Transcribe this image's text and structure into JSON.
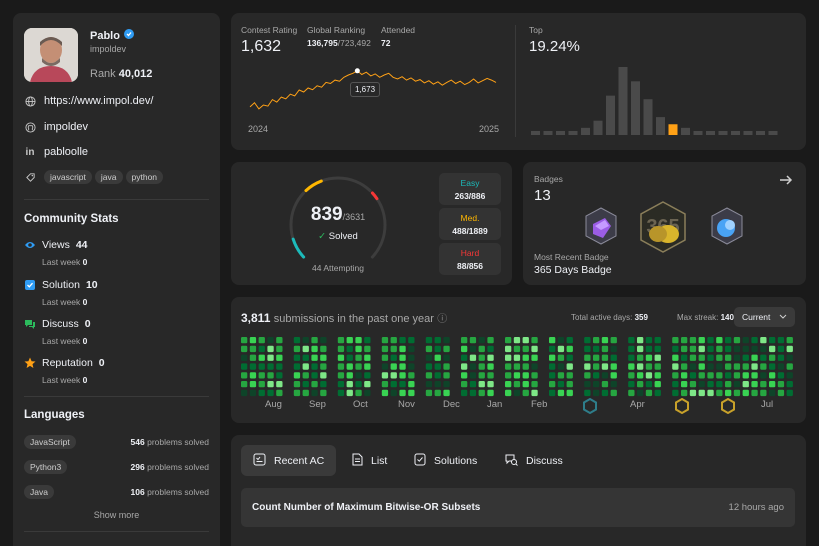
{
  "profile": {
    "name": "Pablo",
    "username": "impoldev",
    "rank_label": "Rank",
    "rank_value": "40,012",
    "website": "https://www.impol.dev/",
    "github": "impoldev",
    "linkedin": "pabloolle",
    "tags": [
      "javascript",
      "java",
      "python"
    ]
  },
  "community": {
    "title": "Community Stats",
    "items": [
      {
        "label": "Views",
        "value": "44",
        "sub": "Last week",
        "sub_value": "0",
        "icon": "eye-icon",
        "color": "#2f9cf4"
      },
      {
        "label": "Solution",
        "value": "10",
        "sub": "Last week",
        "sub_value": "0",
        "icon": "check-square-icon",
        "color": "#2f9cf4"
      },
      {
        "label": "Discuss",
        "value": "0",
        "sub": "Last week",
        "sub_value": "0",
        "icon": "chat-icon",
        "color": "#2cbb5d"
      },
      {
        "label": "Reputation",
        "value": "0",
        "sub": "Last week",
        "sub_value": "0",
        "icon": "star-icon",
        "color": "#ffa116"
      }
    ]
  },
  "languages": {
    "title": "Languages",
    "items": [
      {
        "name": "JavaScript",
        "count": "546",
        "unit": "problems solved"
      },
      {
        "name": "Python3",
        "count": "296",
        "unit": "problems solved"
      },
      {
        "name": "Java",
        "count": "106",
        "unit": "problems solved"
      }
    ],
    "show_more": "Show more"
  },
  "contest": {
    "rating_label": "Contest Rating",
    "rating": "1,632",
    "global_label": "Global Ranking",
    "global_rank": "136,795",
    "global_total": "/723,492",
    "attended_label": "Attended",
    "attended": "72",
    "tooltip": "1,673",
    "year_start": "2024",
    "year_end": "2025",
    "top_label": "Top",
    "top_value": "19.24%"
  },
  "chart_data": [
    {
      "type": "line",
      "title": "Contest Rating",
      "x_labels": [
        "2024",
        "2025"
      ],
      "values": [
        1545,
        1560,
        1538,
        1552,
        1548,
        1571,
        1562,
        1580,
        1574,
        1590,
        1584,
        1605,
        1598,
        1612,
        1606,
        1620,
        1615,
        1632,
        1628,
        1640,
        1636,
        1650,
        1658,
        1664,
        1673,
        1660,
        1668,
        1655,
        1662,
        1650,
        1658,
        1664,
        1650,
        1644,
        1652,
        1640,
        1648,
        1636,
        1642,
        1630,
        1638,
        1626,
        1634,
        1622,
        1632,
        1640,
        1628,
        1636,
        1624,
        1632,
        1644,
        1630,
        1638,
        1646,
        1640,
        1632
      ],
      "highlight": {
        "value": 1673
      }
    },
    {
      "type": "bar",
      "title": "Top",
      "values": [
        1,
        1,
        1,
        1,
        2,
        4,
        11,
        19,
        15,
        10,
        5,
        3,
        2,
        1,
        1,
        1,
        1,
        1,
        1,
        1
      ],
      "highlight_index": 11,
      "colors": {
        "normal": "#4a4a4a",
        "highlight": "#ffa116"
      }
    }
  ],
  "solved": {
    "count": "839",
    "total": "/3631",
    "solved_label": "Solved",
    "attempting": "44 Attempting",
    "easy_label": "Easy",
    "easy": "263/886",
    "med_label": "Med.",
    "med": "488/1889",
    "hard_label": "Hard",
    "hard": "88/856",
    "ring": {
      "easy": 263,
      "medium": 488,
      "hard": 88,
      "total": 3631
    },
    "colors": {
      "easy": "#1cbaba",
      "medium": "#ffb700",
      "hard": "#f63737"
    }
  },
  "badges": {
    "label": "Badges",
    "count": "13",
    "recent_label": "Most Recent Badge",
    "recent": "365 Days Badge",
    "badge_icons": [
      "badge-purple-icon",
      "badge-365-icon",
      "badge-blue-icon"
    ]
  },
  "heatmap": {
    "count": "3,811",
    "label": "submissions in the past one year",
    "active_label": "Total active days:",
    "active": "359",
    "streak_label": "Max streak:",
    "streak": "140",
    "select": "Current",
    "months": [
      "Aug",
      "Sep",
      "Oct",
      "Nov",
      "Dec",
      "Jan",
      "Feb",
      "",
      "Apr",
      "",
      "",
      "Jul"
    ],
    "colors": [
      "#0e4429",
      "#006d32",
      "#26a641",
      "#39d353",
      "#7ee787"
    ]
  },
  "recent": {
    "tabs": [
      "Recent AC",
      "List",
      "Solutions",
      "Discuss"
    ],
    "items": [
      {
        "title": "Count Number of Maximum Bitwise-OR Subsets",
        "time": "12 hours ago"
      }
    ]
  }
}
